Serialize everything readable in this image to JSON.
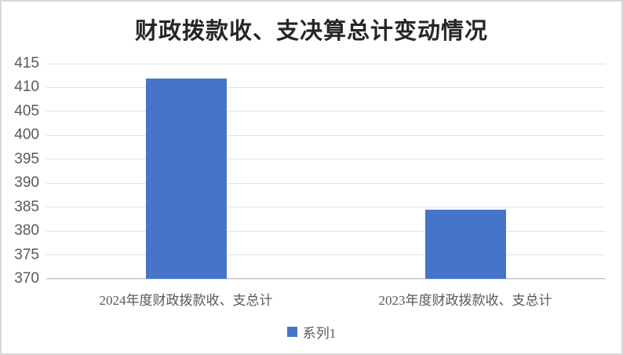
{
  "chart_data": {
    "type": "bar",
    "title": "财政拨款收、支决算总计变动情况",
    "categories": [
      "2024年度财政拨款收、支总计",
      "2023年度财政拨款收、支总计"
    ],
    "series": [
      {
        "name": "系列1",
        "color": "#4674C9",
        "values": [
          411.9,
          384.4
        ]
      }
    ],
    "xlabel": "",
    "ylabel": "",
    "ylim": [
      370,
      415
    ],
    "ytick_step": 5,
    "yticks": [
      370,
      375,
      380,
      385,
      390,
      395,
      400,
      405,
      410,
      415
    ],
    "grid": true,
    "legend_position": "bottom"
  },
  "colors": {
    "bar": "#4674C9",
    "gridline": "#E2E2E2",
    "axis_line": "#C9C9C9",
    "tick_text": "#595959",
    "title_text": "#262626",
    "frame_border": "#D8D8D8",
    "background": "#FFFFFF"
  }
}
